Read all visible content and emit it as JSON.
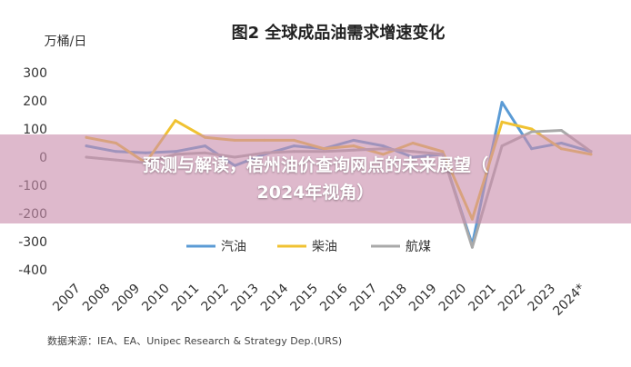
{
  "chart_data": {
    "type": "line",
    "title": "图2 全球成品油需求增速变化",
    "ylabel": "万桶/日",
    "ylim": [
      -400,
      300
    ],
    "yticks": [
      300,
      200,
      100,
      0,
      -100,
      -200,
      -300,
      -400
    ],
    "categories": [
      "2007",
      "2008",
      "2009",
      "2010",
      "2011",
      "2012",
      "2013",
      "2014",
      "2015",
      "2016",
      "2017",
      "2018",
      "2019",
      "2020",
      "2021",
      "2022",
      "2023",
      "2024*"
    ],
    "series": [
      {
        "name": "汽油",
        "color": "#5b9bd5",
        "values": [
          40,
          20,
          15,
          20,
          40,
          -30,
          10,
          40,
          30,
          60,
          40,
          0,
          10,
          -310,
          195,
          30,
          50,
          20
        ]
      },
      {
        "name": "柴油",
        "color": "#f0c232",
        "values": [
          70,
          50,
          -20,
          130,
          70,
          60,
          60,
          60,
          30,
          40,
          10,
          50,
          20,
          -220,
          125,
          100,
          30,
          10
        ]
      },
      {
        "name": "航煤",
        "color": "#a9a9a9",
        "values": [
          0,
          -10,
          -20,
          10,
          15,
          0,
          15,
          20,
          20,
          25,
          30,
          20,
          10,
          -320,
          40,
          90,
          95,
          20
        ]
      }
    ],
    "legend_position": "bottom-center",
    "grid": false,
    "source": "数据来源：IEA、EA、Unipec Research & Strategy Dep.(URS)"
  },
  "banner": {
    "line1": "预测与解读，梧州油价查询网点的未来展望（",
    "line2": "2024年视角）"
  }
}
